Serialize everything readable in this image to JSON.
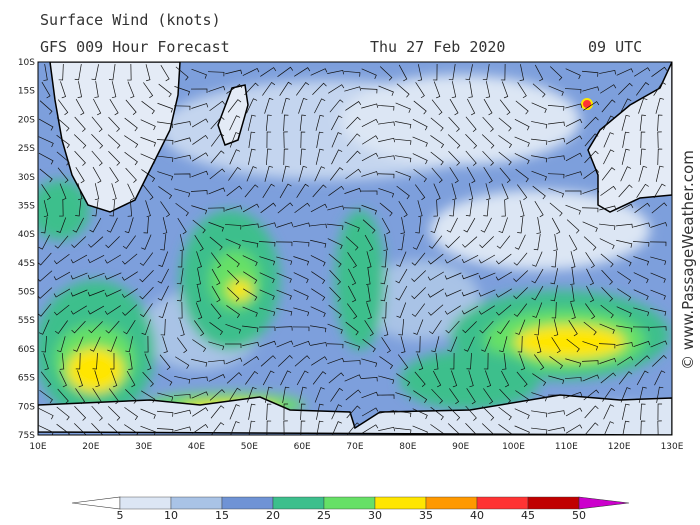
{
  "header": {
    "title": "Surface Wind (knots)",
    "subtitle": "GFS 009 Hour Forecast",
    "date": "Thu 27 Feb 2020",
    "time": "09 UTC"
  },
  "watermark": "© www.PassageWeather.com",
  "map": {
    "latitude_labels": [
      "10S",
      "15S",
      "20S",
      "25S",
      "30S",
      "35S",
      "40S",
      "45S",
      "50S",
      "55S",
      "60S",
      "65S",
      "70S",
      "75S"
    ],
    "longitude_labels": [
      "10E",
      "20E",
      "30E",
      "40E",
      "50E",
      "60E",
      "70E",
      "80E",
      "90E",
      "100E",
      "110E",
      "120E",
      "130E"
    ]
  },
  "legend": {
    "labels": [
      5,
      10,
      15,
      20,
      25,
      30,
      35,
      40,
      45,
      50
    ]
  }
}
